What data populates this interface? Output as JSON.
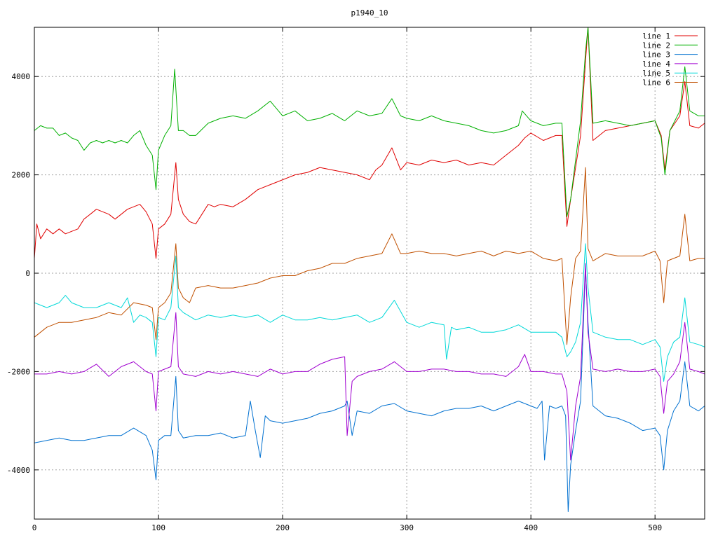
{
  "chart_data": {
    "type": "line",
    "title": "p1940_10",
    "xlabel": "",
    "ylabel": "",
    "xlim": [
      0,
      540
    ],
    "ylim": [
      -5000,
      5000
    ],
    "x_ticks": [
      0,
      100,
      200,
      300,
      400,
      500
    ],
    "y_ticks": [
      -4000,
      -2000,
      0,
      2000,
      4000
    ],
    "y_tick_labels": [
      "-4000",
      "-2000",
      "0",
      "2000",
      "4000"
    ],
    "grid": true,
    "legend_position": "top-right",
    "series": [
      {
        "name": "line 1",
        "color": "#e00000",
        "x": [
          0,
          2,
          5,
          10,
          15,
          20,
          25,
          30,
          35,
          40,
          45,
          50,
          55,
          60,
          65,
          70,
          75,
          80,
          85,
          90,
          95,
          98,
          100,
          105,
          110,
          114,
          116,
          120,
          125,
          130,
          135,
          140,
          145,
          150,
          160,
          170,
          180,
          190,
          200,
          210,
          220,
          230,
          240,
          250,
          260,
          270,
          275,
          280,
          288,
          295,
          300,
          310,
          320,
          330,
          340,
          350,
          360,
          370,
          380,
          390,
          395,
          400,
          410,
          420,
          425,
          429,
          432,
          440,
          444,
          446,
          450,
          460,
          470,
          480,
          490,
          500,
          505,
          508,
          512,
          520,
          524,
          528,
          535,
          540
        ],
        "values": [
          300,
          1000,
          700,
          900,
          800,
          900,
          800,
          850,
          900,
          1100,
          1200,
          1300,
          1250,
          1200,
          1100,
          1200,
          1300,
          1350,
          1400,
          1250,
          1000,
          300,
          900,
          1000,
          1200,
          2250,
          1500,
          1200,
          1050,
          1000,
          1200,
          1400,
          1350,
          1400,
          1350,
          1500,
          1700,
          1800,
          1900,
          2000,
          2050,
          2150,
          2100,
          2050,
          2000,
          1900,
          2100,
          2200,
          2550,
          2100,
          2250,
          2200,
          2300,
          2250,
          2300,
          2200,
          2250,
          2200,
          2400,
          2600,
          2750,
          2850,
          2700,
          2800,
          2800,
          950,
          1500,
          2800,
          4300,
          5000,
          2700,
          2900,
          2950,
          3000,
          3050,
          3100,
          2800,
          2100,
          2900,
          3200,
          3900,
          3000,
          2950,
          3050
        ]
      },
      {
        "name": "line 2",
        "color": "#00b000",
        "x": [
          0,
          5,
          10,
          15,
          20,
          25,
          30,
          35,
          40,
          45,
          50,
          55,
          60,
          65,
          70,
          75,
          80,
          85,
          90,
          95,
          98,
          100,
          105,
          110,
          113,
          116,
          120,
          125,
          130,
          140,
          150,
          160,
          170,
          180,
          190,
          200,
          210,
          220,
          230,
          240,
          250,
          260,
          270,
          280,
          288,
          295,
          300,
          310,
          320,
          330,
          340,
          350,
          360,
          370,
          380,
          390,
          393,
          400,
          410,
          420,
          425,
          429,
          432,
          440,
          444,
          446,
          450,
          460,
          470,
          480,
          490,
          500,
          505,
          508,
          512,
          520,
          524,
          528,
          535,
          540
        ],
        "values": [
          2900,
          3000,
          2950,
          2950,
          2800,
          2850,
          2750,
          2700,
          2500,
          2650,
          2700,
          2650,
          2700,
          2650,
          2700,
          2650,
          2800,
          2900,
          2600,
          2400,
          1700,
          2500,
          2800,
          3000,
          4150,
          2900,
          2900,
          2800,
          2800,
          3050,
          3150,
          3200,
          3150,
          3300,
          3500,
          3200,
          3300,
          3100,
          3150,
          3250,
          3100,
          3300,
          3200,
          3250,
          3550,
          3200,
          3150,
          3100,
          3200,
          3100,
          3050,
          3000,
          2900,
          2850,
          2900,
          3000,
          3300,
          3100,
          3000,
          3050,
          3050,
          1150,
          1500,
          3100,
          4500,
          5000,
          3050,
          3100,
          3050,
          3000,
          3050,
          3100,
          2750,
          2000,
          2900,
          3300,
          4200,
          3300,
          3200,
          3200
        ]
      },
      {
        "name": "line 3",
        "color": "#0070d0",
        "x": [
          0,
          10,
          20,
          30,
          40,
          50,
          60,
          70,
          80,
          90,
          95,
          98,
          100,
          105,
          110,
          114,
          116,
          120,
          130,
          140,
          150,
          160,
          170,
          174,
          178,
          182,
          186,
          190,
          200,
          210,
          220,
          230,
          240,
          250,
          252,
          256,
          260,
          270,
          280,
          290,
          300,
          310,
          320,
          330,
          340,
          350,
          360,
          370,
          380,
          390,
          400,
          405,
          409,
          411,
          415,
          420,
          425,
          428,
          430,
          432,
          436,
          440,
          444,
          446,
          450,
          460,
          470,
          480,
          490,
          500,
          504,
          507,
          510,
          515,
          520,
          524,
          528,
          535,
          540
        ],
        "values": [
          -3450,
          -3400,
          -3350,
          -3400,
          -3400,
          -3350,
          -3300,
          -3300,
          -3150,
          -3300,
          -3600,
          -4200,
          -3400,
          -3300,
          -3300,
          -2100,
          -3200,
          -3350,
          -3300,
          -3300,
          -3250,
          -3350,
          -3300,
          -2600,
          -3200,
          -3750,
          -2900,
          -3000,
          -3050,
          -3000,
          -2950,
          -2850,
          -2800,
          -2700,
          -2600,
          -3300,
          -2800,
          -2850,
          -2700,
          -2650,
          -2800,
          -2850,
          -2900,
          -2800,
          -2750,
          -2750,
          -2700,
          -2800,
          -2700,
          -2600,
          -2700,
          -2750,
          -2600,
          -3800,
          -2700,
          -2750,
          -2700,
          -2900,
          -4850,
          -3900,
          -3200,
          -2600,
          100,
          -1000,
          -2700,
          -2900,
          -2950,
          -3050,
          -3200,
          -3150,
          -3300,
          -4000,
          -3200,
          -2800,
          -2600,
          -1800,
          -2700,
          -2800,
          -2700
        ]
      },
      {
        "name": "line 4",
        "color": "#a000d0",
        "x": [
          0,
          10,
          20,
          30,
          40,
          50,
          60,
          70,
          80,
          90,
          95,
          98,
          100,
          105,
          110,
          114,
          116,
          120,
          130,
          140,
          150,
          160,
          170,
          180,
          190,
          200,
          210,
          220,
          230,
          240,
          250,
          252,
          256,
          260,
          270,
          280,
          290,
          300,
          310,
          320,
          330,
          340,
          350,
          360,
          370,
          380,
          390,
          395,
          400,
          410,
          420,
          425,
          429,
          432,
          436,
          440,
          444,
          446,
          450,
          460,
          470,
          480,
          490,
          500,
          504,
          507,
          510,
          515,
          520,
          524,
          528,
          535,
          540
        ],
        "values": [
          -2050,
          -2050,
          -2000,
          -2050,
          -2000,
          -1850,
          -2100,
          -1900,
          -1800,
          -2000,
          -2050,
          -2800,
          -2000,
          -1950,
          -1900,
          -800,
          -1900,
          -2050,
          -2100,
          -2000,
          -2050,
          -2000,
          -2050,
          -2100,
          -1950,
          -2050,
          -2000,
          -2000,
          -1850,
          -1750,
          -1700,
          -3300,
          -2200,
          -2100,
          -2000,
          -1950,
          -1800,
          -2000,
          -2000,
          -1950,
          -1950,
          -2000,
          -2000,
          -2050,
          -2050,
          -2100,
          -1900,
          -1650,
          -2000,
          -2000,
          -2050,
          -2050,
          -2400,
          -3800,
          -2700,
          -2100,
          200,
          -1200,
          -1950,
          -2000,
          -1950,
          -2000,
          -2000,
          -1950,
          -2100,
          -2850,
          -2200,
          -2050,
          -1800,
          -1000,
          -1950,
          -2000,
          -2050
        ]
      },
      {
        "name": "line 5",
        "color": "#00d8d8",
        "x": [
          0,
          10,
          20,
          25,
          30,
          40,
          50,
          60,
          70,
          75,
          80,
          85,
          90,
          95,
          98,
          100,
          105,
          110,
          114,
          116,
          120,
          130,
          140,
          150,
          160,
          170,
          180,
          190,
          200,
          210,
          220,
          230,
          240,
          250,
          260,
          270,
          280,
          290,
          300,
          310,
          320,
          330,
          332,
          336,
          340,
          350,
          360,
          370,
          380,
          390,
          400,
          410,
          420,
          425,
          429,
          432,
          436,
          440,
          444,
          446,
          450,
          460,
          470,
          480,
          490,
          500,
          504,
          507,
          510,
          515,
          520,
          524,
          528,
          535,
          540
        ],
        "values": [
          -600,
          -700,
          -600,
          -450,
          -600,
          -700,
          -700,
          -600,
          -700,
          -500,
          -1000,
          -850,
          -900,
          -1000,
          -1700,
          -900,
          -950,
          -700,
          350,
          -700,
          -800,
          -950,
          -850,
          -900,
          -850,
          -900,
          -850,
          -1000,
          -850,
          -950,
          -950,
          -900,
          -950,
          -900,
          -850,
          -1000,
          -900,
          -550,
          -1000,
          -1100,
          -1000,
          -1050,
          -1750,
          -1100,
          -1150,
          -1100,
          -1200,
          -1200,
          -1150,
          -1050,
          -1200,
          -1200,
          -1200,
          -1300,
          -1700,
          -1600,
          -1400,
          -1000,
          600,
          -300,
          -1200,
          -1300,
          -1350,
          -1350,
          -1450,
          -1350,
          -1500,
          -2200,
          -1700,
          -1400,
          -1300,
          -500,
          -1400,
          -1450,
          -1500
        ]
      },
      {
        "name": "line 6",
        "color": "#c05000",
        "x": [
          0,
          10,
          20,
          30,
          40,
          50,
          60,
          70,
          80,
          90,
          95,
          98,
          100,
          105,
          110,
          114,
          116,
          120,
          125,
          130,
          140,
          150,
          160,
          170,
          180,
          190,
          200,
          210,
          220,
          230,
          240,
          250,
          260,
          270,
          280,
          288,
          295,
          300,
          310,
          320,
          330,
          340,
          350,
          360,
          370,
          380,
          390,
          400,
          410,
          420,
          425,
          429,
          432,
          436,
          440,
          444,
          446,
          450,
          460,
          470,
          480,
          490,
          500,
          504,
          507,
          510,
          515,
          520,
          524,
          528,
          535,
          540
        ],
        "values": [
          -1300,
          -1100,
          -1000,
          -1000,
          -950,
          -900,
          -800,
          -850,
          -600,
          -650,
          -700,
          -1350,
          -700,
          -600,
          -400,
          600,
          -300,
          -500,
          -600,
          -300,
          -250,
          -300,
          -300,
          -250,
          -200,
          -100,
          -50,
          -50,
          50,
          100,
          200,
          200,
          300,
          350,
          400,
          800,
          400,
          400,
          450,
          400,
          400,
          350,
          400,
          450,
          350,
          450,
          400,
          450,
          300,
          250,
          300,
          -1450,
          -500,
          300,
          450,
          2150,
          500,
          250,
          400,
          350,
          350,
          350,
          450,
          250,
          -600,
          250,
          300,
          350,
          1200,
          250,
          300,
          300
        ]
      }
    ]
  }
}
